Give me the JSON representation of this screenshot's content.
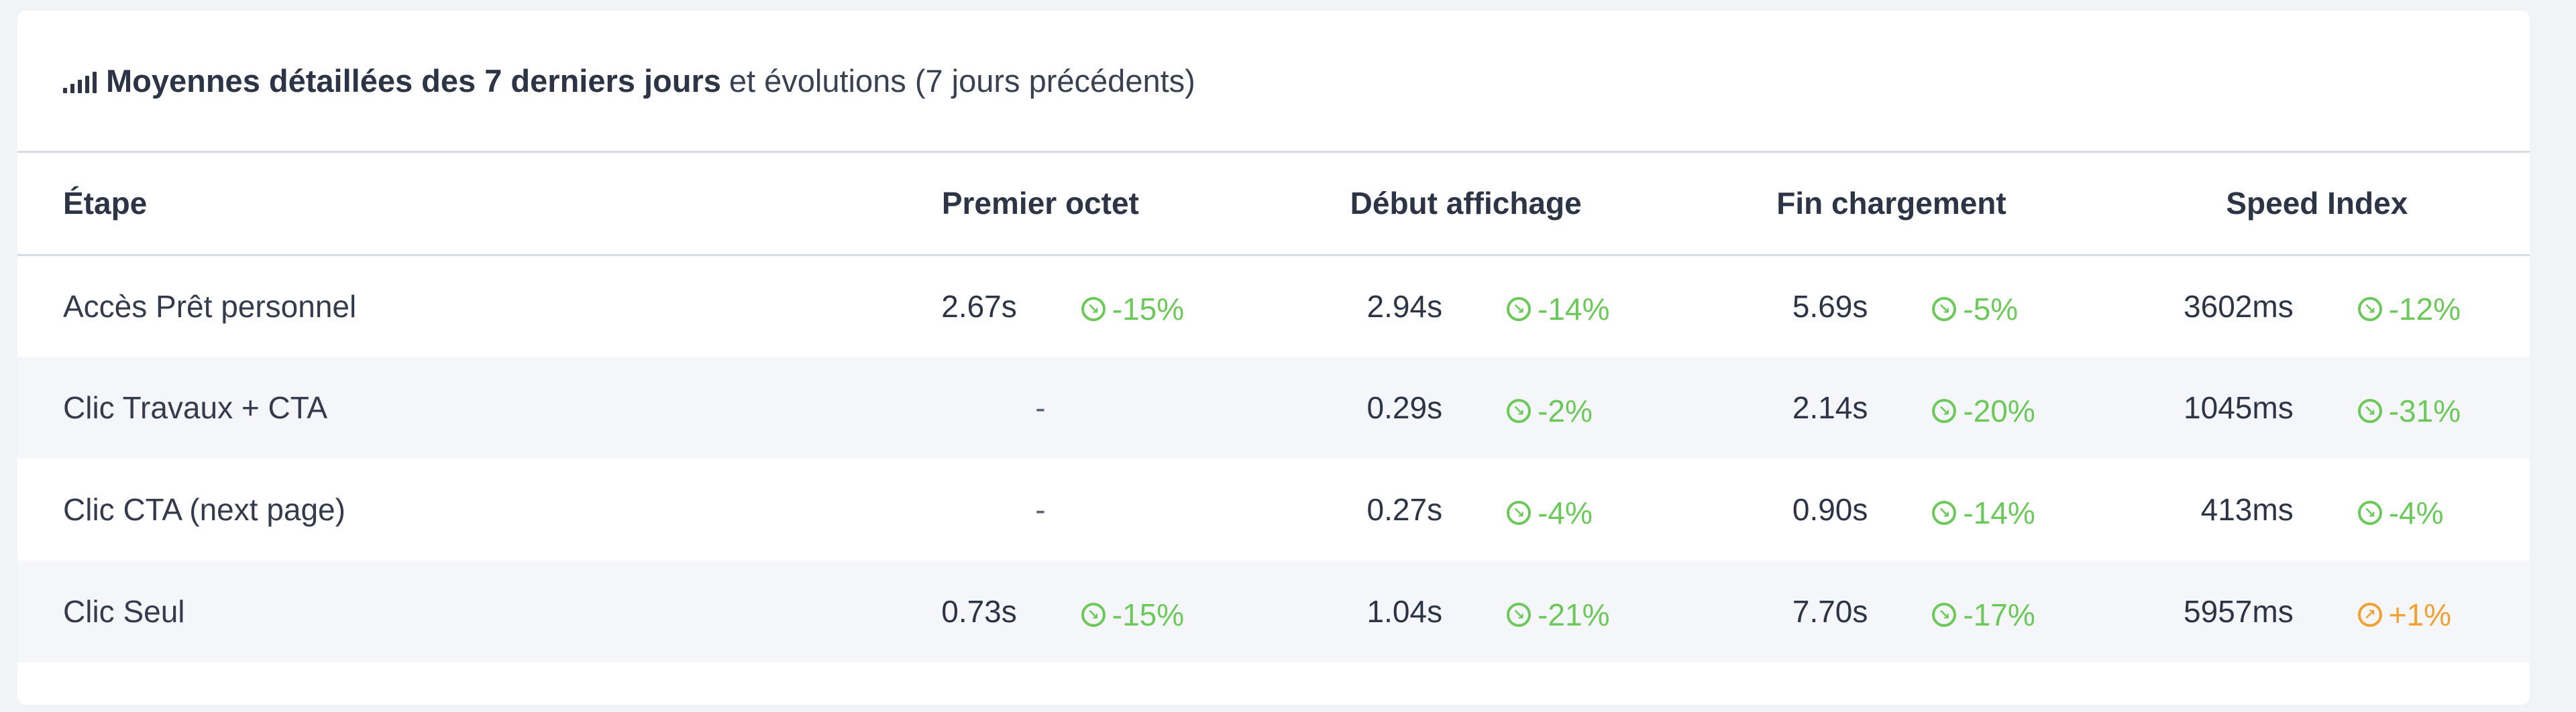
{
  "card": {
    "title_strong": "Moyennes détaillées des 7 derniers jours",
    "title_light": "et évolutions (7 jours précédents)",
    "icon": "signal-bars-icon"
  },
  "table": {
    "headers": {
      "etape": "Étape",
      "premier_octet": "Premier octet",
      "debut_affichage": "Début affichage",
      "fin_chargement": "Fin chargement",
      "speed_index": "Speed Index"
    },
    "rows": [
      {
        "etape": "Accès Prêt personnel",
        "premier_octet": {
          "value": "2.67s",
          "evolution": "-15%",
          "trend": "down"
        },
        "debut_affichage": {
          "value": "2.94s",
          "evolution": "-14%",
          "trend": "down"
        },
        "fin_chargement": {
          "value": "5.69s",
          "evolution": "-5%",
          "trend": "down"
        },
        "speed_index": {
          "value": "3602ms",
          "evolution": "-12%",
          "trend": "down"
        }
      },
      {
        "etape": "Clic Travaux + CTA",
        "premier_octet": {
          "value": "-"
        },
        "debut_affichage": {
          "value": "0.29s",
          "evolution": "-2%",
          "trend": "down"
        },
        "fin_chargement": {
          "value": "2.14s",
          "evolution": "-20%",
          "trend": "down"
        },
        "speed_index": {
          "value": "1045ms",
          "evolution": "-31%",
          "trend": "down"
        }
      },
      {
        "etape": "Clic CTA (next page)",
        "premier_octet": {
          "value": "-"
        },
        "debut_affichage": {
          "value": "0.27s",
          "evolution": "-4%",
          "trend": "down"
        },
        "fin_chargement": {
          "value": "0.90s",
          "evolution": "-14%",
          "trend": "down"
        },
        "speed_index": {
          "value": "413ms",
          "evolution": "-4%",
          "trend": "down"
        }
      },
      {
        "etape": "Clic Seul",
        "premier_octet": {
          "value": "0.73s",
          "evolution": "-15%",
          "trend": "down"
        },
        "debut_affichage": {
          "value": "1.04s",
          "evolution": "-21%",
          "trend": "down"
        },
        "fin_chargement": {
          "value": "7.70s",
          "evolution": "-17%",
          "trend": "down"
        },
        "speed_index": {
          "value": "5957ms",
          "evolution": "+1%",
          "trend": "up"
        }
      }
    ]
  },
  "colors": {
    "improvement": "#6cc85a",
    "regression": "#f0a133",
    "text": "#2d3446",
    "row_alt": "#f5f6f9"
  },
  "icons": {
    "down": "arrow-down-right-circle-icon",
    "up": "arrow-up-right-circle-icon"
  }
}
